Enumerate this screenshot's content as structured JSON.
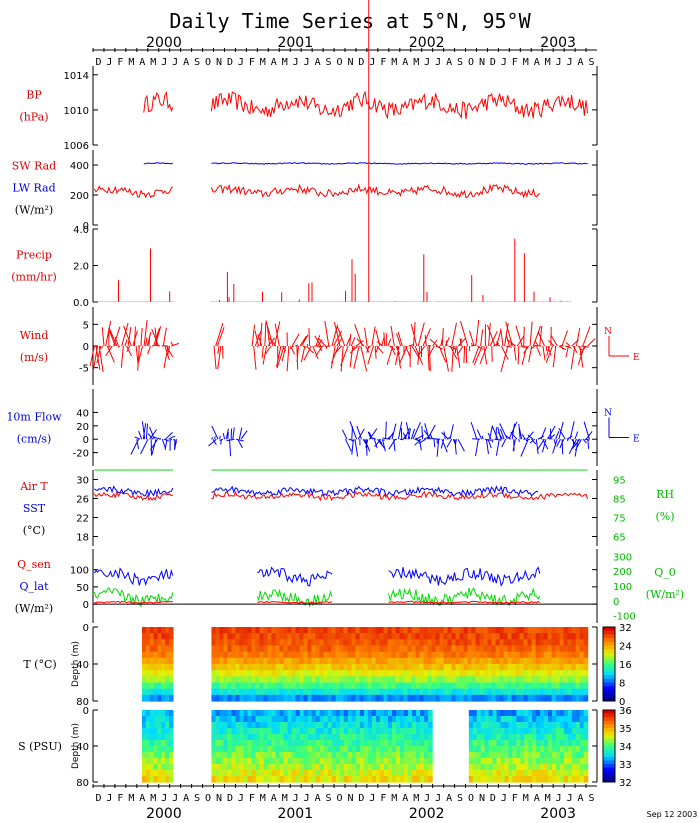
{
  "chart_data": {
    "type": "line",
    "title": "Daily Time Series at 5°N, 95°W",
    "stamp": "Sep 12 2003",
    "x_axis": {
      "months_top": [
        "D",
        "J",
        "F",
        "M",
        "A",
        "M",
        "J",
        "J",
        "A",
        "S",
        "O",
        "N",
        "D",
        "J",
        "F",
        "M",
        "A",
        "M",
        "J",
        "J",
        "A",
        "S",
        "O",
        "N",
        "D",
        "J",
        "F",
        "M",
        "A",
        "M",
        "J",
        "J",
        "A",
        "S",
        "O",
        "N",
        "D",
        "J",
        "F",
        "M",
        "A",
        "M",
        "J",
        "J",
        "A",
        "S"
      ],
      "year_labels": [
        "2000",
        "2001",
        "2002",
        "2003"
      ],
      "range": [
        "1999-12",
        "2003-09"
      ]
    },
    "panels": [
      {
        "id": "bp",
        "ylabels": [
          {
            "text": "BP",
            "color": "#dd0000"
          },
          {
            "text": "(hPa)",
            "color": "#dd0000"
          }
        ],
        "ticks": [
          "1014",
          "1010",
          "1006"
        ],
        "ylim": [
          1006,
          1015
        ],
        "series": [
          {
            "name": "BP",
            "color": "#ff0000",
            "segments": [
              [
                "2000-04-20",
                "2000-07-10"
              ],
              [
                "2000-10-25",
                "2003-09-05"
              ]
            ],
            "mean": 1010.5,
            "amp": 2.0
          }
        ]
      },
      {
        "id": "rad",
        "ylabels": [
          {
            "text": "SW Rad",
            "color": "#dd0000"
          },
          {
            "text": "LW Rad",
            "color": "#0000dd"
          },
          {
            "text": "(W/m²)",
            "color": "#000000"
          }
        ],
        "ticks": [
          "400",
          "200",
          "0"
        ],
        "ylim": [
          0,
          500
        ],
        "series": [
          {
            "name": "SW Rad",
            "color": "#ff0000",
            "segments": [
              [
                "1999-12-05",
                "2000-07-10"
              ],
              [
                "2000-10-25",
                "2003-04-25"
              ]
            ],
            "mean": 225,
            "amp": 55
          },
          {
            "name": "LW Rad",
            "color": "#0000ff",
            "segments": [
              [
                "2000-04-20",
                "2000-07-10"
              ],
              [
                "2000-10-25",
                "2003-09-05"
              ]
            ],
            "mean": 410,
            "amp": 7
          }
        ]
      },
      {
        "id": "precip",
        "ylabels": [
          {
            "text": "Precip",
            "color": "#dd0000"
          },
          {
            "text": "(mm/hr)",
            "color": "#dd0000"
          }
        ],
        "ticks": [
          "4.0",
          "2.0",
          "0.0"
        ],
        "ylim": [
          0,
          4
        ],
        "series": [
          {
            "name": "Precip",
            "color": "#ff0000",
            "segments": [
              [
                "1999-12-05",
                "2000-07-10"
              ],
              [
                "2000-10-25",
                "2003-07-20"
              ]
            ],
            "mean": 0,
            "amp": 4
          }
        ]
      },
      {
        "id": "wind",
        "ylabels": [
          {
            "text": "Wind",
            "color": "#dd0000"
          },
          {
            "text": "(m/s)",
            "color": "#dd0000"
          }
        ],
        "ticks": [
          "5",
          "0",
          "-5"
        ],
        "ylim": [
          -9,
          9
        ],
        "compass": "E",
        "series": [
          {
            "name": "Wind",
            "color": "#ff0000",
            "segments": [
              [
                "1999-12-05",
                "2000-07-10"
              ],
              [
                "2000-11-01",
                "2000-11-25"
              ],
              [
                "2001-02-15",
                "2003-09-05"
              ]
            ],
            "mean": 0,
            "amp": 6
          }
        ]
      },
      {
        "id": "flow",
        "ylabels": [
          {
            "text": "10m Flow",
            "color": "#0000dd"
          },
          {
            "text": "(cm/s)",
            "color": "#0000dd"
          }
        ],
        "ticks": [
          "40",
          "20",
          "0",
          "-20"
        ],
        "ylim": [
          -40,
          75
        ],
        "compass": "E",
        "series": [
          {
            "name": "10m Flow",
            "color": "#0000ff",
            "segments": [
              [
                "2000-04-01",
                "2000-07-20"
              ],
              [
                "2000-10-25",
                "2001-01-15"
              ],
              [
                "2001-11-01",
                "2002-09-10"
              ],
              [
                "2002-11-01",
                "2003-09-10"
              ]
            ],
            "mean": 0,
            "amp": 30
          }
        ]
      },
      {
        "id": "temp",
        "ylabels": [
          {
            "text": "Air T",
            "color": "#dd0000"
          },
          {
            "text": "SST",
            "color": "#0000dd"
          },
          {
            "text": "(°C)",
            "color": "#000000"
          }
        ],
        "ticks": [
          "30",
          "26",
          "22",
          "18"
        ],
        "ylim": [
          16,
          32
        ],
        "right_ticks": [
          "95",
          "85",
          "75",
          "65"
        ],
        "right_labels": [
          {
            "text": "RH",
            "color": "#00bb00"
          },
          {
            "text": "(%)",
            "color": "#00bb00"
          }
        ],
        "series": [
          {
            "name": "RH",
            "color": "#00dd00",
            "segments": [
              [
                "1999-12-05",
                "2000-07-10"
              ],
              [
                "2000-10-25",
                "2003-09-05"
              ]
            ],
            "mean": 85,
            "amp": 8
          },
          {
            "name": "Air T",
            "color": "#ff0000",
            "segments": [
              [
                "1999-12-05",
                "2000-07-10"
              ],
              [
                "2000-10-25",
                "2003-09-05"
              ]
            ],
            "mean": 26.5,
            "amp": 1.2
          },
          {
            "name": "SST",
            "color": "#0000ff",
            "segments": [
              [
                "1999-12-05",
                "2000-07-10"
              ],
              [
                "2000-10-25",
                "2003-04-20"
              ]
            ],
            "mean": 27.5,
            "amp": 1.3
          }
        ]
      },
      {
        "id": "heat",
        "ylabels": [
          {
            "text": "Q_sen",
            "color": "#dd0000"
          },
          {
            "text": "Q_lat",
            "color": "#0000dd"
          },
          {
            "text": "(W/m²)",
            "color": "#000000"
          }
        ],
        "ticks": [
          "100",
          "50",
          "0"
        ],
        "ylim": [
          -55,
          160
        ],
        "right_ticks": [
          "300",
          "200",
          "100",
          "0",
          "-100"
        ],
        "right_labels": [
          {
            "text": "Q_0",
            "color": "#00bb00"
          },
          {
            "text": "(W/m²)",
            "color": "#00bb00"
          }
        ],
        "series": [
          {
            "name": "Q_0",
            "color": "#00dd00",
            "segments": [
              [
                "1999-12-05",
                "2000-07-10"
              ],
              [
                "2001-03-01",
                "2001-09-25"
              ],
              [
                "2002-03-01",
                "2003-04-25"
              ]
            ],
            "mean": 20,
            "amp": 35
          },
          {
            "name": "Q_lat",
            "color": "#0000ff",
            "segments": [
              [
                "1999-12-05",
                "2000-07-10"
              ],
              [
                "2001-03-01",
                "2001-09-25"
              ],
              [
                "2002-03-01",
                "2003-04-25"
              ]
            ],
            "mean": 80,
            "amp": 35
          },
          {
            "name": "Q_sen",
            "color": "#ff0000",
            "segments": [
              [
                "1999-12-05",
                "2000-07-10"
              ],
              [
                "2001-03-01",
                "2001-09-25"
              ],
              [
                "2002-03-01",
                "2003-04-25"
              ]
            ],
            "mean": 5,
            "amp": 4
          }
        ]
      },
      {
        "id": "tsec",
        "type": "heatmap",
        "ylabels": [
          {
            "text": "T (°C)",
            "color": "#000000"
          }
        ],
        "depth_label": "Depth (m)",
        "ticks": [
          "0",
          "40",
          "80"
        ],
        "ylim": [
          80,
          0
        ],
        "colorbar": {
          "ticks": [
            "32",
            "24",
            "16",
            "8",
            "0"
          ],
          "range": [
            0,
            32
          ]
        },
        "segments": [
          [
            "2000-04-15",
            "2000-07-10"
          ],
          [
            "2000-10-25",
            "2003-09-05"
          ]
        ]
      },
      {
        "id": "ssec",
        "type": "heatmap",
        "ylabels": [
          {
            "text": "S (PSU)",
            "color": "#000000"
          }
        ],
        "depth_label": "Depth (m)",
        "ticks": [
          "0",
          "40",
          "80"
        ],
        "ylim": [
          80,
          0
        ],
        "colorbar": {
          "ticks": [
            "36",
            "35",
            "34",
            "33",
            "32"
          ],
          "range": [
            32,
            36.5
          ]
        },
        "segments": [
          [
            "2000-04-15",
            "2000-07-10"
          ],
          [
            "2000-10-25",
            "2002-06-30"
          ],
          [
            "2002-10-10",
            "2003-09-05"
          ]
        ]
      }
    ],
    "vertical_marker": {
      "date": "2002-01-05",
      "color": "#ff0000"
    }
  }
}
